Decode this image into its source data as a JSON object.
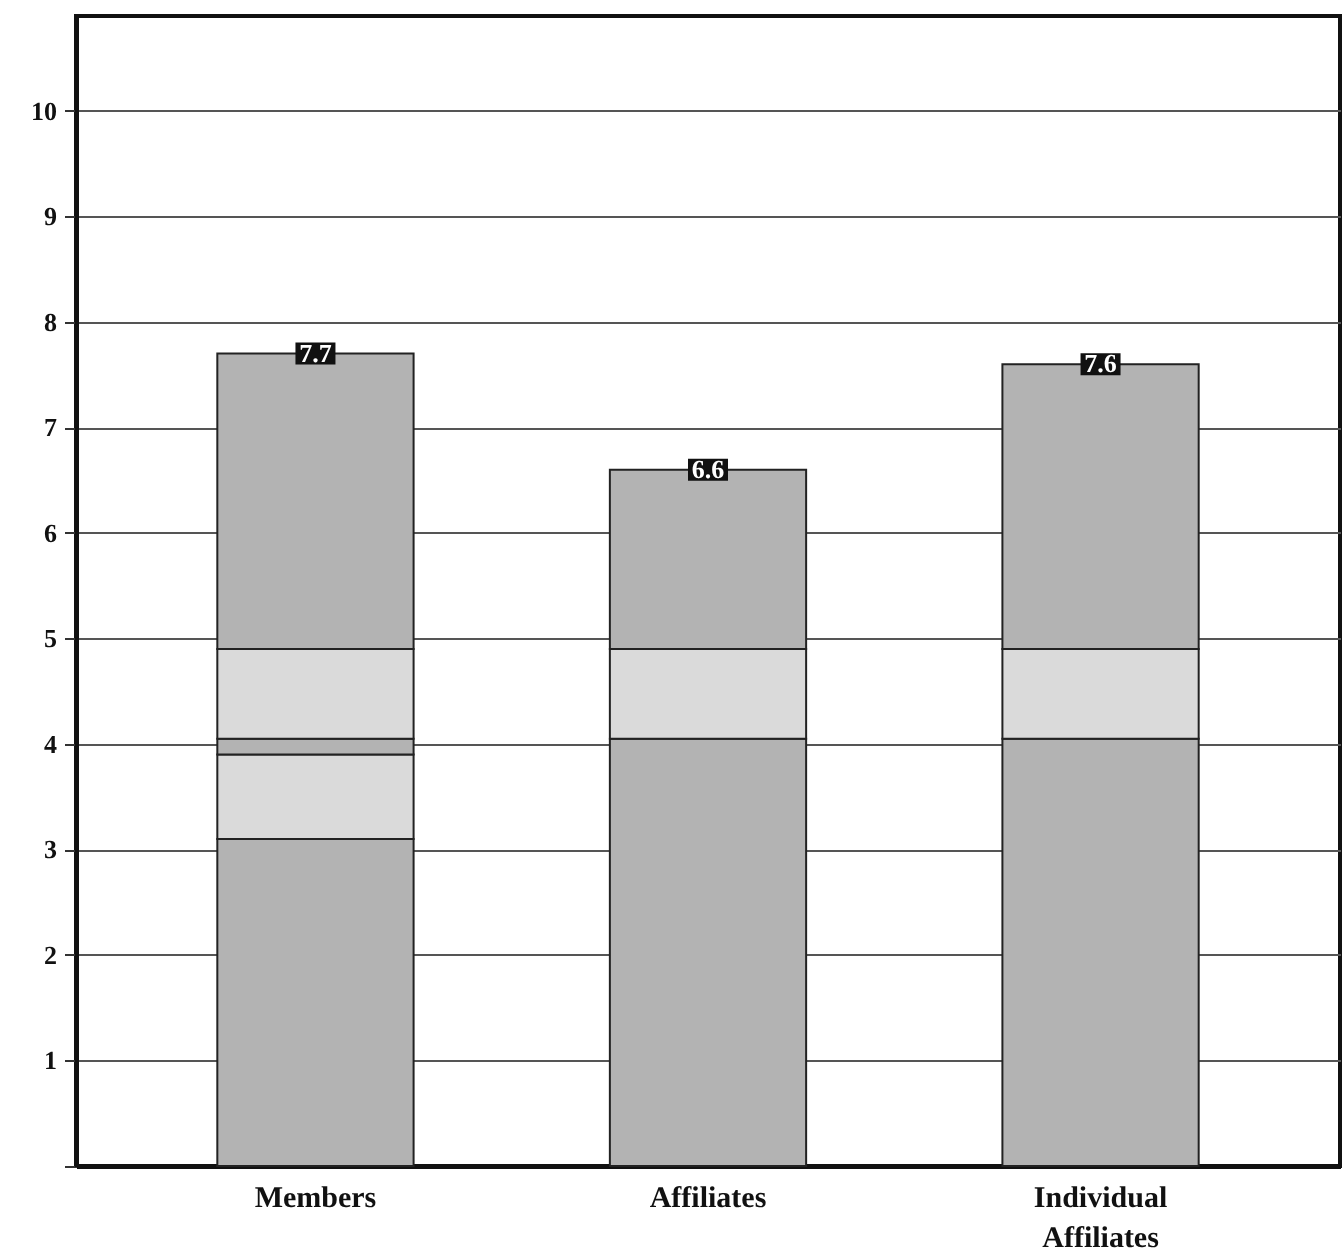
{
  "chart_data": {
    "type": "bar",
    "stacked": true,
    "categories": [
      "Members",
      "Affiliates",
      "Individual Affiliates"
    ],
    "series": [
      {
        "color": "#b3b3b3",
        "values": [
          3.1,
          4.05,
          4.05
        ]
      },
      {
        "color": "#dadada",
        "values": [
          0.8,
          0.85,
          0.85
        ]
      },
      {
        "color": "#b3b3b3",
        "values": [
          0.15,
          null,
          null
        ]
      },
      {
        "color": "#dadada",
        "values": [
          0.85,
          null,
          null
        ]
      },
      {
        "color": "#b3b3b3",
        "values": [
          2.8,
          1.7,
          2.7
        ]
      }
    ],
    "totals": [
      "7.7",
      "6.6",
      "7.6"
    ],
    "ylim": [
      0,
      10.9
    ],
    "yticks": [
      {
        "value": 0,
        "label": null
      },
      1,
      2,
      3,
      4,
      5,
      6,
      7,
      8,
      9,
      10
    ],
    "grid": "y"
  }
}
